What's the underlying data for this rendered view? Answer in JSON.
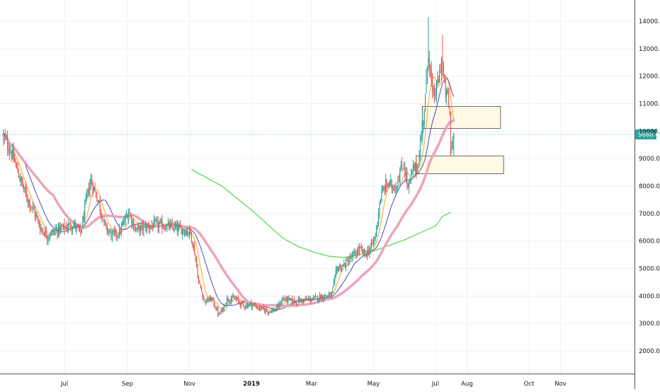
{
  "chart_data": {
    "type": "candlestick",
    "x_tick_labels": [
      "Jul",
      "Sep",
      "Nov",
      "2019",
      "Mar",
      "May",
      "Jul",
      "Aug",
      "Oct",
      "Nov"
    ],
    "x_tick_days": [
      0,
      62,
      123,
      184,
      243,
      304,
      365,
      396,
      457,
      488
    ],
    "y_tick_labels": [
      "2000.0",
      "3000.0",
      "4000.0",
      "5000.0",
      "6000.0",
      "7000.0",
      "8000.0",
      "9000.0",
      "10000.0",
      "11000.0",
      "12000.0",
      "13000.0",
      "14000.0"
    ],
    "ylim": [
      1100,
      14700
    ],
    "grid": true,
    "price_badge": "9880.0",
    "current_price": 9880,
    "anchors": [
      [
        -60,
        9800
      ],
      [
        -52,
        9200
      ],
      [
        -44,
        8300
      ],
      [
        -38,
        7700
      ],
      [
        -30,
        7100
      ],
      [
        -24,
        6500
      ],
      [
        -17,
        6200
      ],
      [
        -8,
        6400
      ],
      [
        0,
        6500
      ],
      [
        9,
        6600
      ],
      [
        16,
        6300
      ],
      [
        22,
        7600
      ],
      [
        26,
        8200
      ],
      [
        33,
        7500
      ],
      [
        40,
        6500
      ],
      [
        47,
        6200
      ],
      [
        54,
        6300
      ],
      [
        60,
        6800
      ],
      [
        63,
        7100
      ],
      [
        70,
        6400
      ],
      [
        80,
        6500
      ],
      [
        90,
        6600
      ],
      [
        100,
        6550
      ],
      [
        110,
        6450
      ],
      [
        118,
        6400
      ],
      [
        124,
        6300
      ],
      [
        128,
        5600
      ],
      [
        132,
        4500
      ],
      [
        138,
        3800
      ],
      [
        145,
        3900
      ],
      [
        152,
        3300
      ],
      [
        156,
        3550
      ],
      [
        160,
        3900
      ],
      [
        168,
        3900
      ],
      [
        176,
        3650
      ],
      [
        184,
        3700
      ],
      [
        192,
        3550
      ],
      [
        200,
        3450
      ],
      [
        208,
        3500
      ],
      [
        215,
        3900
      ],
      [
        225,
        3800
      ],
      [
        235,
        3850
      ],
      [
        245,
        3900
      ],
      [
        255,
        4000
      ],
      [
        263,
        4050
      ],
      [
        268,
        5000
      ],
      [
        274,
        5100
      ],
      [
        280,
        5300
      ],
      [
        290,
        5700
      ],
      [
        296,
        5500
      ],
      [
        302,
        5800
      ],
      [
        306,
        6200
      ],
      [
        310,
        7400
      ],
      [
        314,
        7900
      ],
      [
        318,
        8100
      ],
      [
        321,
        8000
      ],
      [
        326,
        8000
      ],
      [
        330,
        8500
      ],
      [
        334,
        8800
      ],
      [
        338,
        7900
      ],
      [
        343,
        8600
      ],
      [
        347,
        8700
      ],
      [
        351,
        9800
      ],
      [
        355,
        11200
      ],
      [
        358,
        13000
      ],
      [
        362,
        11200
      ],
      [
        366,
        11500
      ],
      [
        369,
        12100
      ],
      [
        371,
        12700
      ],
      [
        374,
        11500
      ],
      [
        377,
        11200
      ],
      [
        379,
        10600
      ],
      [
        380,
        9300
      ],
      [
        383,
        9880
      ]
    ],
    "mas": [
      {
        "period": 9,
        "color": "#f5a623",
        "width": 1
      },
      {
        "period": 21,
        "color": "#3f4bc4",
        "width": 1
      },
      {
        "period": 50,
        "color": "#f0a3b5",
        "width": 3.5
      }
    ],
    "ma200": {
      "color": "#4cd94c",
      "points": [
        [
          125,
          8600
        ],
        [
          140,
          8300
        ],
        [
          155,
          8000
        ],
        [
          170,
          7550
        ],
        [
          185,
          7100
        ],
        [
          200,
          6600
        ],
        [
          215,
          6100
        ],
        [
          230,
          5800
        ],
        [
          245,
          5600
        ],
        [
          260,
          5450
        ],
        [
          275,
          5400
        ],
        [
          290,
          5500
        ],
        [
          305,
          5650
        ],
        [
          320,
          5850
        ],
        [
          335,
          6050
        ],
        [
          350,
          6300
        ],
        [
          365,
          6550
        ],
        [
          372,
          6900
        ],
        [
          380,
          7050
        ]
      ]
    },
    "zones": [
      {
        "day0": 352,
        "day1": 429,
        "top": 10900,
        "bottom": 10100
      },
      {
        "day0": 346,
        "day1": 432,
        "top": 9100,
        "bottom": 8450
      }
    ]
  }
}
